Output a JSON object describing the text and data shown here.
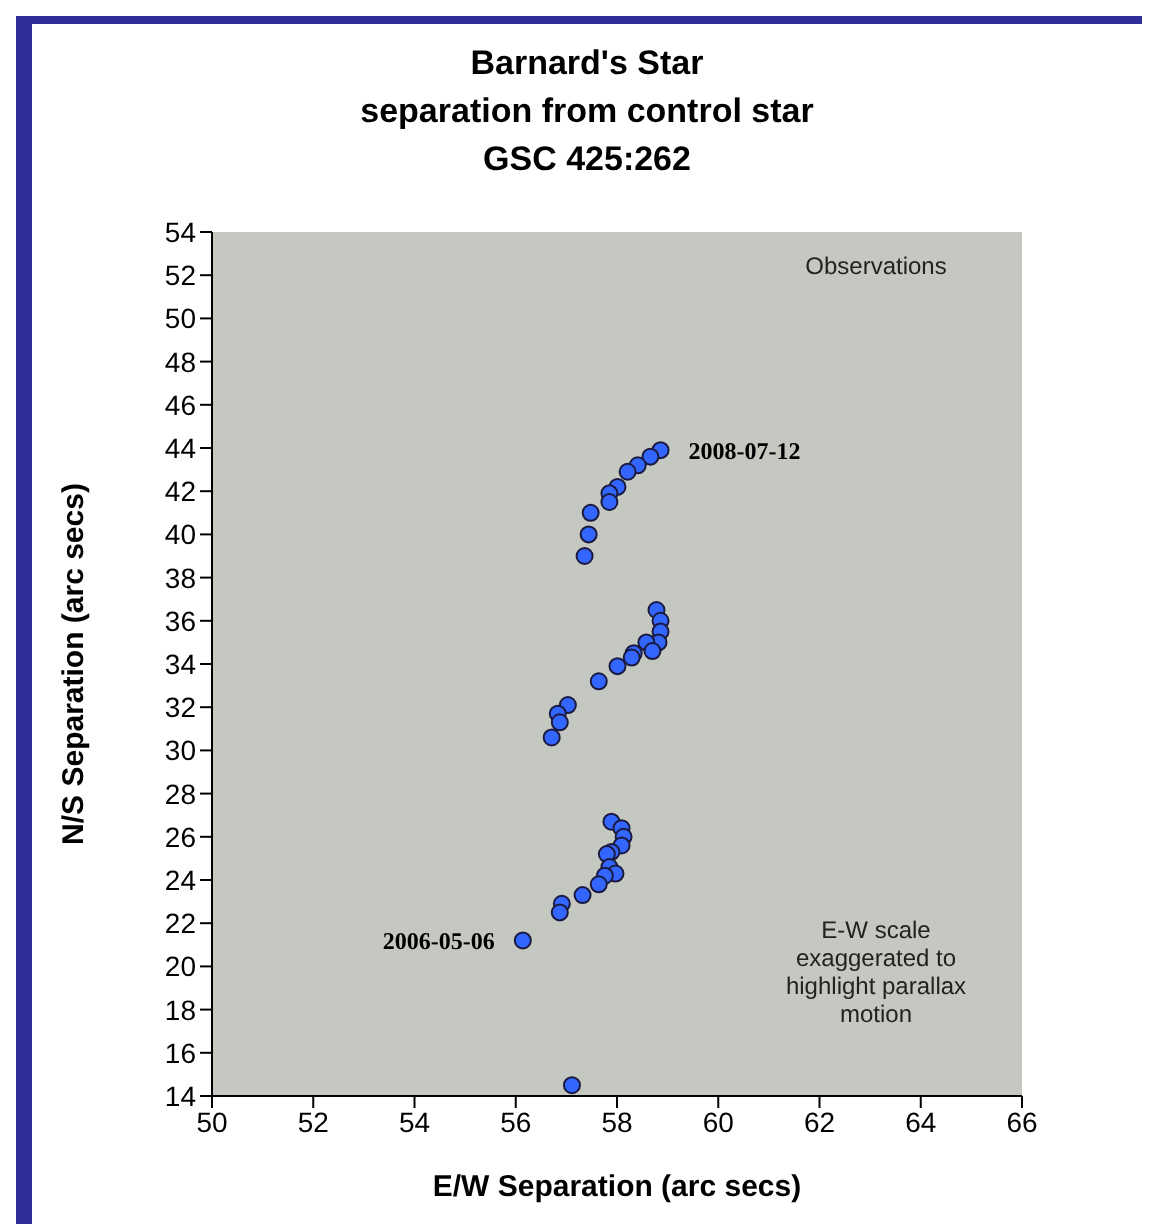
{
  "chart_data": {
    "type": "scatter",
    "title": "Barnard's Star\nseparation from control star\nGSC 425:262",
    "xlabel": "E/W Separation (arc secs)",
    "ylabel": "N/S Separation (arc secs)",
    "x": [
      58.86,
      58.66,
      58.41,
      58.21,
      58.01,
      57.85,
      57.85,
      57.48,
      57.44,
      57.36,
      58.78,
      58.86,
      58.86,
      58.82,
      58.58,
      58.7,
      58.33,
      58.29,
      58.01,
      57.64,
      57.03,
      56.83,
      56.87,
      56.71,
      57.89,
      58.09,
      58.13,
      58.09,
      57.89,
      57.8,
      57.85,
      57.97,
      57.76,
      57.64,
      57.32,
      56.91,
      56.87,
      56.14,
      57.11
    ],
    "series": [
      {
        "color": "#3366ff",
        "values": [
          43.9,
          43.6,
          43.2,
          42.9,
          42.2,
          41.9,
          41.5,
          41.0,
          40.0,
          39.0,
          36.5,
          36.0,
          35.5,
          35.0,
          35.0,
          34.6,
          34.5,
          34.3,
          33.9,
          33.2,
          32.1,
          31.7,
          31.3,
          30.6,
          26.7,
          26.4,
          26.0,
          25.6,
          25.3,
          25.2,
          24.6,
          24.3,
          24.2,
          23.8,
          23.3,
          22.9,
          22.5,
          21.2,
          14.5
        ]
      }
    ],
    "xlim": [
      50,
      66
    ],
    "xticks": [
      50,
      52,
      54,
      56,
      58,
      60,
      62,
      64,
      66
    ],
    "ylim": [
      14,
      54
    ],
    "yticks": [
      14,
      16,
      18,
      20,
      22,
      24,
      26,
      28,
      30,
      32,
      34,
      36,
      38,
      40,
      42,
      44,
      46,
      48,
      50,
      52,
      54
    ],
    "marker": "circle",
    "legend": false,
    "annotations": [
      {
        "text": "2008-07-12",
        "x": 58.86,
        "y": 43.9
      },
      {
        "text": "2006-05-06",
        "x": 56.14,
        "y": 21.2
      },
      "Observations",
      "E-W scale\nexaggerated to\nhighlight parallax\nmotion"
    ]
  }
}
